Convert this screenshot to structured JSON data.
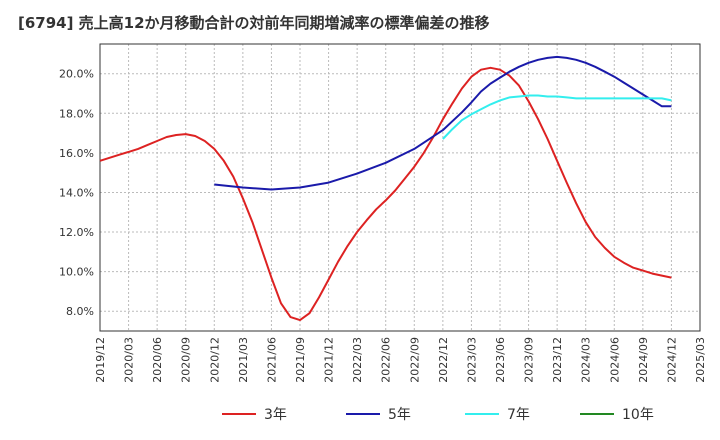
{
  "chart_data": {
    "type": "line",
    "title": "[6794]  売上高12か月移動合計の対前年同期増減率の標準偏差の推移",
    "xlabel": "",
    "ylabel": "",
    "ylim": [
      7.0,
      21.5
    ],
    "y_ticks": [
      "8.0%",
      "10.0%",
      "12.0%",
      "14.0%",
      "16.0%",
      "18.0%",
      "20.0%"
    ],
    "y_tick_values": [
      8,
      10,
      12,
      14,
      16,
      18,
      20
    ],
    "x_ticks": [
      "2019/12",
      "2020/03",
      "2020/06",
      "2020/09",
      "2020/12",
      "2021/03",
      "2021/06",
      "2021/09",
      "2021/12",
      "2022/03",
      "2022/06",
      "2022/09",
      "2022/12",
      "2023/03",
      "2023/06",
      "2023/09",
      "2023/12",
      "2024/03",
      "2024/06",
      "2024/09",
      "2024/12",
      "2025/03"
    ],
    "grid": true,
    "legend_position": "bottom",
    "series": [
      {
        "name": "3年",
        "color": "#dd2222",
        "points": [
          [
            "2019/12",
            15.6
          ],
          [
            "2020/01",
            15.75
          ],
          [
            "2020/02",
            15.9
          ],
          [
            "2020/03",
            16.05
          ],
          [
            "2020/04",
            16.2
          ],
          [
            "2020/05",
            16.4
          ],
          [
            "2020/06",
            16.6
          ],
          [
            "2020/07",
            16.8
          ],
          [
            "2020/08",
            16.9
          ],
          [
            "2020/09",
            16.95
          ],
          [
            "2020/10",
            16.85
          ],
          [
            "2020/11",
            16.6
          ],
          [
            "2020/12",
            16.2
          ],
          [
            "2021/01",
            15.6
          ],
          [
            "2021/02",
            14.8
          ],
          [
            "2021/03",
            13.7
          ],
          [
            "2021/04",
            12.5
          ],
          [
            "2021/05",
            11.1
          ],
          [
            "2021/06",
            9.7
          ],
          [
            "2021/07",
            8.4
          ],
          [
            "2021/08",
            7.7
          ],
          [
            "2021/09",
            7.55
          ],
          [
            "2021/10",
            7.9
          ],
          [
            "2021/11",
            8.7
          ],
          [
            "2021/12",
            9.6
          ],
          [
            "2022/01",
            10.5
          ],
          [
            "2022/02",
            11.3
          ],
          [
            "2022/03",
            12.0
          ],
          [
            "2022/04",
            12.6
          ],
          [
            "2022/05",
            13.15
          ],
          [
            "2022/06",
            13.6
          ],
          [
            "2022/07",
            14.1
          ],
          [
            "2022/08",
            14.7
          ],
          [
            "2022/09",
            15.3
          ],
          [
            "2022/10",
            16.0
          ],
          [
            "2022/11",
            16.8
          ],
          [
            "2022/12",
            17.7
          ],
          [
            "2023/01",
            18.5
          ],
          [
            "2023/02",
            19.25
          ],
          [
            "2023/03",
            19.85
          ],
          [
            "2023/04",
            20.2
          ],
          [
            "2023/05",
            20.3
          ],
          [
            "2023/06",
            20.2
          ],
          [
            "2023/07",
            19.9
          ],
          [
            "2023/08",
            19.4
          ],
          [
            "2023/09",
            18.6
          ],
          [
            "2023/10",
            17.7
          ],
          [
            "2023/11",
            16.7
          ],
          [
            "2023/12",
            15.6
          ],
          [
            "2024/01",
            14.5
          ],
          [
            "2024/02",
            13.45
          ],
          [
            "2024/03",
            12.5
          ],
          [
            "2024/04",
            11.75
          ],
          [
            "2024/05",
            11.2
          ],
          [
            "2024/06",
            10.75
          ],
          [
            "2024/07",
            10.45
          ],
          [
            "2024/08",
            10.2
          ],
          [
            "2024/09",
            10.05
          ],
          [
            "2024/10",
            9.9
          ],
          [
            "2024/11",
            9.8
          ],
          [
            "2024/12",
            9.7
          ]
        ]
      },
      {
        "name": "5年",
        "color": "#1a1aaa",
        "points": [
          [
            "2020/12",
            14.4
          ],
          [
            "2021/03",
            14.25
          ],
          [
            "2021/06",
            14.15
          ],
          [
            "2021/09",
            14.25
          ],
          [
            "2021/12",
            14.5
          ],
          [
            "2022/03",
            14.95
          ],
          [
            "2022/06",
            15.5
          ],
          [
            "2022/09",
            16.2
          ],
          [
            "2022/12",
            17.15
          ],
          [
            "2023/01",
            17.6
          ],
          [
            "2023/02",
            18.05
          ],
          [
            "2023/03",
            18.55
          ],
          [
            "2023/04",
            19.1
          ],
          [
            "2023/05",
            19.5
          ],
          [
            "2023/06",
            19.8
          ],
          [
            "2023/07",
            20.1
          ],
          [
            "2023/08",
            20.35
          ],
          [
            "2023/09",
            20.55
          ],
          [
            "2023/10",
            20.7
          ],
          [
            "2023/11",
            20.8
          ],
          [
            "2023/12",
            20.85
          ],
          [
            "2024/01",
            20.8
          ],
          [
            "2024/02",
            20.7
          ],
          [
            "2024/03",
            20.55
          ],
          [
            "2024/04",
            20.35
          ],
          [
            "2024/05",
            20.1
          ],
          [
            "2024/06",
            19.85
          ],
          [
            "2024/07",
            19.55
          ],
          [
            "2024/08",
            19.25
          ],
          [
            "2024/09",
            18.95
          ],
          [
            "2024/10",
            18.65
          ],
          [
            "2024/11",
            18.35
          ],
          [
            "2024/12",
            18.35
          ]
        ]
      },
      {
        "name": "7年",
        "color": "#33eeee",
        "points": [
          [
            "2022/12",
            16.7
          ],
          [
            "2023/01",
            17.2
          ],
          [
            "2023/02",
            17.65
          ],
          [
            "2023/03",
            17.95
          ],
          [
            "2023/04",
            18.2
          ],
          [
            "2023/05",
            18.45
          ],
          [
            "2023/06",
            18.65
          ],
          [
            "2023/07",
            18.8
          ],
          [
            "2023/08",
            18.85
          ],
          [
            "2023/09",
            18.9
          ],
          [
            "2023/10",
            18.9
          ],
          [
            "2023/11",
            18.85
          ],
          [
            "2023/12",
            18.85
          ],
          [
            "2024/01",
            18.8
          ],
          [
            "2024/02",
            18.75
          ],
          [
            "2024/03",
            18.75
          ],
          [
            "2024/04",
            18.75
          ],
          [
            "2024/05",
            18.75
          ],
          [
            "2024/06",
            18.75
          ],
          [
            "2024/07",
            18.75
          ],
          [
            "2024/08",
            18.75
          ],
          [
            "2024/09",
            18.75
          ],
          [
            "2024/10",
            18.75
          ],
          [
            "2024/11",
            18.75
          ],
          [
            "2024/12",
            18.65
          ]
        ]
      },
      {
        "name": "10年",
        "color": "#228822",
        "points": []
      }
    ]
  }
}
